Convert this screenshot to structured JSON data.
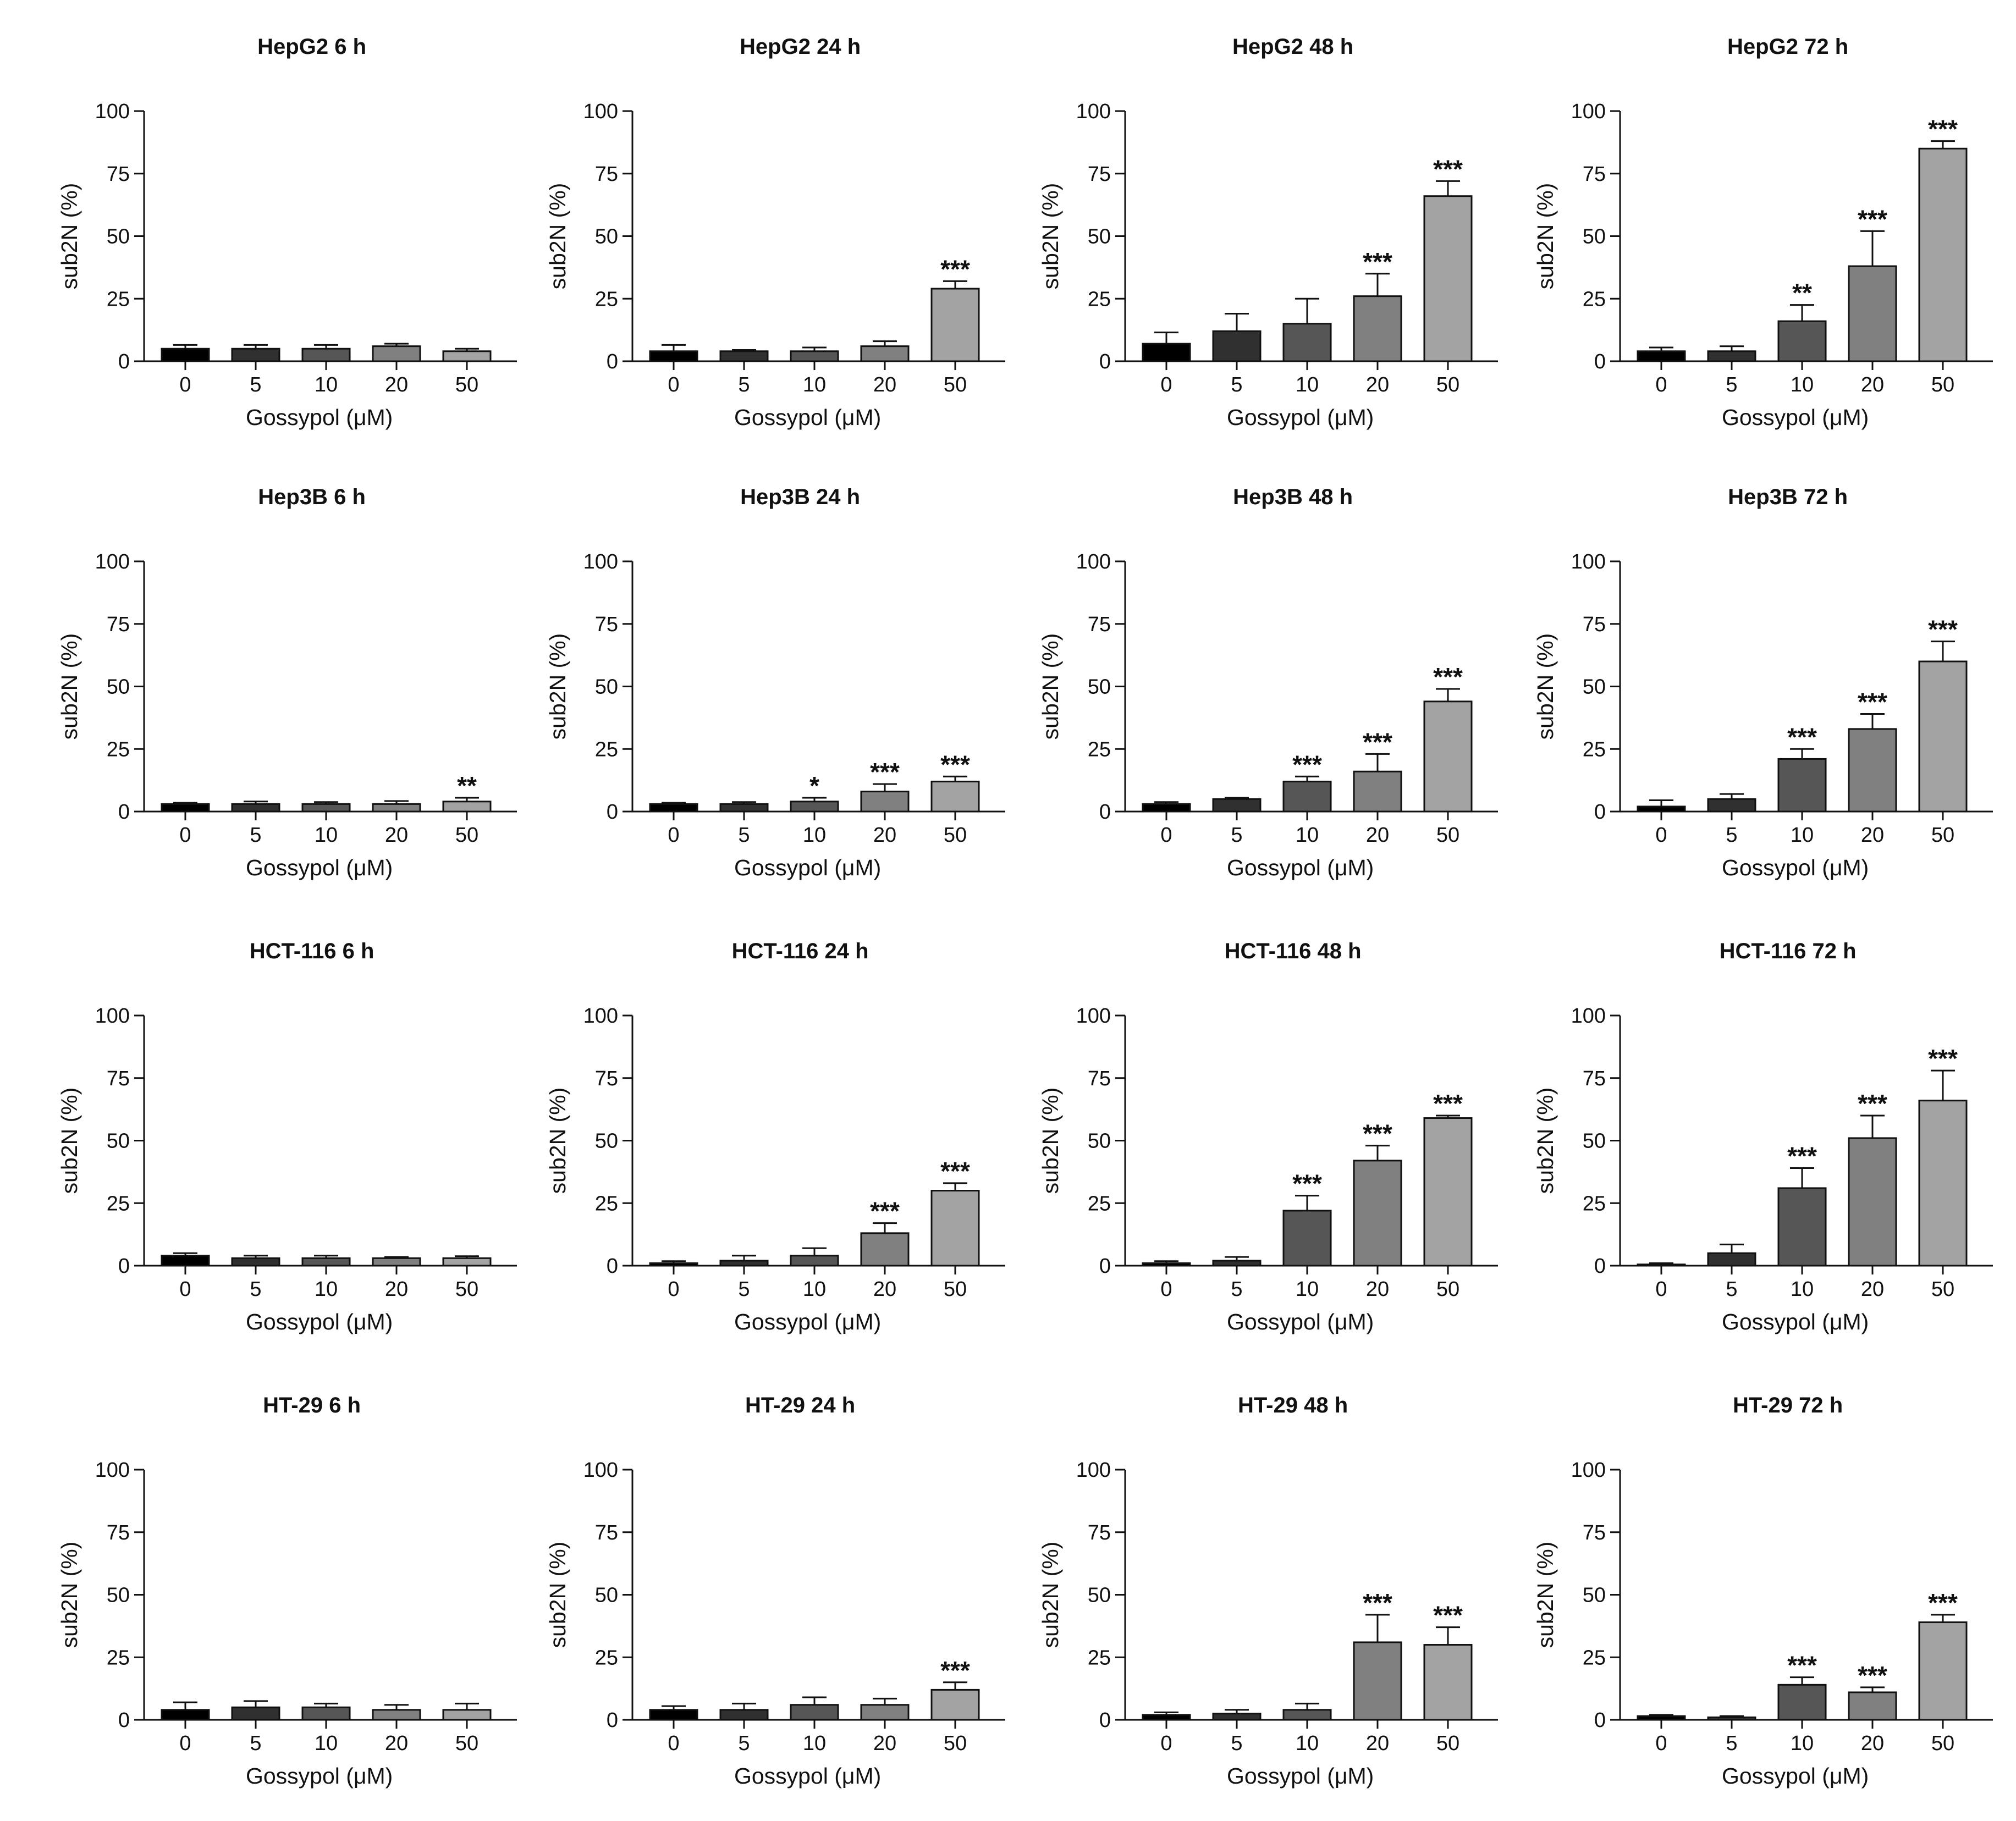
{
  "figure": {
    "x_label": "Gossypol (μM)",
    "y_label": "sub2N (%)",
    "categories": [
      "0",
      "5",
      "10",
      "20",
      "50"
    ],
    "y_ticks": [
      "0",
      "25",
      "50",
      "75",
      "100"
    ],
    "bar_colors": [
      "#000000",
      "#303030",
      "#565656",
      "#808080",
      "#a3a3a3"
    ]
  },
  "chart_data": [
    {
      "type": "bar",
      "title": "HepG2 6 h",
      "xlabel": "Gossypol (μM)",
      "ylabel": "sub2N (%)",
      "ylim": [
        0,
        100
      ],
      "categories": [
        "0",
        "5",
        "10",
        "20",
        "50"
      ],
      "values": [
        5,
        5,
        5,
        6,
        4
      ],
      "errors": [
        1.5,
        1.5,
        1.5,
        1,
        1
      ],
      "significance": [
        "",
        "",
        "",
        "",
        ""
      ]
    },
    {
      "type": "bar",
      "title": "HepG2 24 h",
      "xlabel": "Gossypol (μM)",
      "ylabel": "sub2N (%)",
      "ylim": [
        0,
        100
      ],
      "categories": [
        "0",
        "5",
        "10",
        "20",
        "50"
      ],
      "values": [
        4,
        4,
        4,
        6,
        29
      ],
      "errors": [
        2.5,
        0.5,
        1.5,
        2,
        3
      ],
      "significance": [
        "",
        "",
        "",
        "",
        "***"
      ]
    },
    {
      "type": "bar",
      "title": "HepG2 48 h",
      "xlabel": "Gossypol (μM)",
      "ylabel": "sub2N (%)",
      "ylim": [
        0,
        100
      ],
      "categories": [
        "0",
        "5",
        "10",
        "20",
        "50"
      ],
      "values": [
        7,
        12,
        15,
        26,
        66
      ],
      "errors": [
        4.5,
        7,
        10,
        9,
        6
      ],
      "significance": [
        "",
        "",
        "",
        "***",
        "***"
      ]
    },
    {
      "type": "bar",
      "title": "HepG2 72 h",
      "xlabel": "Gossypol (μM)",
      "ylabel": "sub2N (%)",
      "ylim": [
        0,
        100
      ],
      "categories": [
        "0",
        "5",
        "10",
        "20",
        "50"
      ],
      "values": [
        4,
        4,
        16,
        38,
        85
      ],
      "errors": [
        1.5,
        2,
        6.5,
        14,
        3
      ],
      "significance": [
        "",
        "",
        "**",
        "***",
        "***"
      ]
    },
    {
      "type": "bar",
      "title": "Hep3B 6 h",
      "xlabel": "Gossypol (μM)",
      "ylabel": "sub2N (%)",
      "ylim": [
        0,
        100
      ],
      "categories": [
        "0",
        "5",
        "10",
        "20",
        "50"
      ],
      "values": [
        3,
        3,
        3,
        3,
        4
      ],
      "errors": [
        0.5,
        1,
        0.8,
        1.2,
        1.5
      ],
      "significance": [
        "",
        "",
        "",
        "",
        "**"
      ]
    },
    {
      "type": "bar",
      "title": "Hep3B 24 h",
      "xlabel": "Gossypol (μM)",
      "ylabel": "sub2N (%)",
      "ylim": [
        0,
        100
      ],
      "categories": [
        "0",
        "5",
        "10",
        "20",
        "50"
      ],
      "values": [
        3,
        3,
        4,
        8,
        12
      ],
      "errors": [
        0.5,
        0.8,
        1.5,
        3,
        2
      ],
      "significance": [
        "",
        "",
        "*",
        "***",
        "***"
      ]
    },
    {
      "type": "bar",
      "title": "Hep3B 48 h",
      "xlabel": "Gossypol (μM)",
      "ylabel": "sub2N (%)",
      "ylim": [
        0,
        100
      ],
      "categories": [
        "0",
        "5",
        "10",
        "20",
        "50"
      ],
      "values": [
        3,
        5,
        12,
        16,
        44
      ],
      "errors": [
        0.8,
        0.5,
        2,
        7,
        5
      ],
      "significance": [
        "",
        "",
        "***",
        "***",
        "***"
      ]
    },
    {
      "type": "bar",
      "title": "Hep3B 72 h",
      "xlabel": "Gossypol (μM)",
      "ylabel": "sub2N (%)",
      "ylim": [
        0,
        100
      ],
      "categories": [
        "0",
        "5",
        "10",
        "20",
        "50"
      ],
      "values": [
        2,
        5,
        21,
        33,
        60
      ],
      "errors": [
        2.5,
        2,
        4,
        6,
        8
      ],
      "significance": [
        "",
        "",
        "***",
        "***",
        "***"
      ]
    },
    {
      "type": "bar",
      "title": "HCT-116 6 h",
      "xlabel": "Gossypol (μM)",
      "ylabel": "sub2N (%)",
      "ylim": [
        0,
        100
      ],
      "categories": [
        "0",
        "5",
        "10",
        "20",
        "50"
      ],
      "values": [
        4,
        3,
        3,
        3,
        3
      ],
      "errors": [
        1,
        1,
        1,
        0.5,
        0.8
      ],
      "significance": [
        "",
        "",
        "",
        "",
        ""
      ]
    },
    {
      "type": "bar",
      "title": "HCT-116 24 h",
      "xlabel": "Gossypol (μM)",
      "ylabel": "sub2N (%)",
      "ylim": [
        0,
        100
      ],
      "categories": [
        "0",
        "5",
        "10",
        "20",
        "50"
      ],
      "values": [
        1,
        2,
        4,
        13,
        30
      ],
      "errors": [
        0.8,
        2,
        3,
        4,
        3
      ],
      "significance": [
        "",
        "",
        "",
        "***",
        "***"
      ]
    },
    {
      "type": "bar",
      "title": "HCT-116 48 h",
      "xlabel": "Gossypol (μM)",
      "ylabel": "sub2N (%)",
      "ylim": [
        0,
        100
      ],
      "categories": [
        "0",
        "5",
        "10",
        "20",
        "50"
      ],
      "values": [
        1,
        2,
        22,
        42,
        59
      ],
      "errors": [
        0.8,
        1.5,
        6,
        6,
        1
      ],
      "significance": [
        "",
        "",
        "***",
        "***",
        "***"
      ]
    },
    {
      "type": "bar",
      "title": "HCT-116 72 h",
      "xlabel": "Gossypol (μM)",
      "ylabel": "sub2N (%)",
      "ylim": [
        0,
        100
      ],
      "categories": [
        "0",
        "5",
        "10",
        "20",
        "50"
      ],
      "values": [
        0.5,
        5,
        31,
        51,
        66
      ],
      "errors": [
        0.5,
        3.5,
        8,
        9,
        12
      ],
      "significance": [
        "",
        "",
        "***",
        "***",
        "***"
      ]
    },
    {
      "type": "bar",
      "title": "HT-29 6 h",
      "xlabel": "Gossypol (μM)",
      "ylabel": "sub2N (%)",
      "ylim": [
        0,
        100
      ],
      "categories": [
        "0",
        "5",
        "10",
        "20",
        "50"
      ],
      "values": [
        4,
        5,
        5,
        4,
        4
      ],
      "errors": [
        3,
        2.5,
        1.5,
        2,
        2.5
      ],
      "significance": [
        "",
        "",
        "",
        "",
        ""
      ]
    },
    {
      "type": "bar",
      "title": "HT-29 24 h",
      "xlabel": "Gossypol (μM)",
      "ylabel": "sub2N (%)",
      "ylim": [
        0,
        100
      ],
      "categories": [
        "0",
        "5",
        "10",
        "20",
        "50"
      ],
      "values": [
        4,
        4,
        6,
        6,
        12
      ],
      "errors": [
        1.5,
        2.5,
        3,
        2.5,
        3
      ],
      "significance": [
        "",
        "",
        "",
        "",
        "***"
      ]
    },
    {
      "type": "bar",
      "title": "HT-29 48 h",
      "xlabel": "Gossypol (μM)",
      "ylabel": "sub2N (%)",
      "ylim": [
        0,
        100
      ],
      "categories": [
        "0",
        "5",
        "10",
        "20",
        "50"
      ],
      "values": [
        2,
        2.5,
        4,
        31,
        30
      ],
      "errors": [
        1,
        1.5,
        2.5,
        11,
        7
      ],
      "significance": [
        "",
        "",
        "",
        "***",
        "***"
      ]
    },
    {
      "type": "bar",
      "title": "HT-29 72 h",
      "xlabel": "Gossypol (μM)",
      "ylabel": "sub2N (%)",
      "ylim": [
        0,
        100
      ],
      "categories": [
        "0",
        "5",
        "10",
        "20",
        "50"
      ],
      "values": [
        1.5,
        1,
        14,
        11,
        39
      ],
      "errors": [
        0.5,
        0.5,
        3,
        2,
        3
      ],
      "significance": [
        "",
        "",
        "***",
        "***",
        "***"
      ]
    }
  ]
}
